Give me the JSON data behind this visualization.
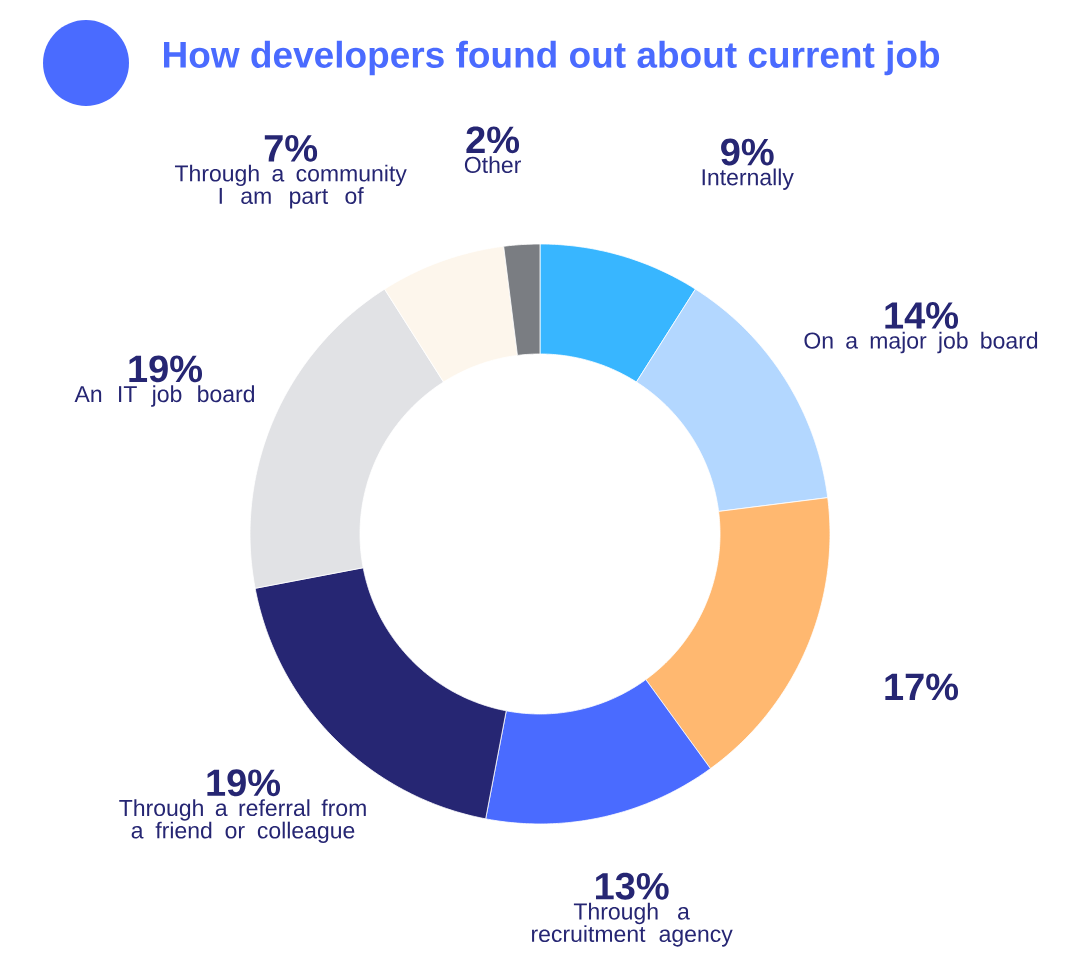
{
  "chart_data": {
    "type": "donut",
    "title": "How developers found out about current job",
    "categories": [
      "Internally",
      "On a major job board",
      null,
      "Through a recruitment agency",
      "Through a referral from a friend or colleague",
      "An IT job board",
      "Through a community I am part of",
      "Other"
    ],
    "values": [
      9,
      14,
      17,
      13,
      19,
      19,
      7,
      2
    ],
    "value_labels": [
      "9%",
      "14%",
      "17%",
      "13%",
      "19%",
      "19%",
      "7%",
      "2%"
    ],
    "colors": [
      "#38b6ff",
      "#b3d7ff",
      "#ffb870",
      "#4a6bff",
      "#262673",
      "#e1e2e5",
      "#fdf6ec",
      "#7a7d82"
    ]
  }
}
